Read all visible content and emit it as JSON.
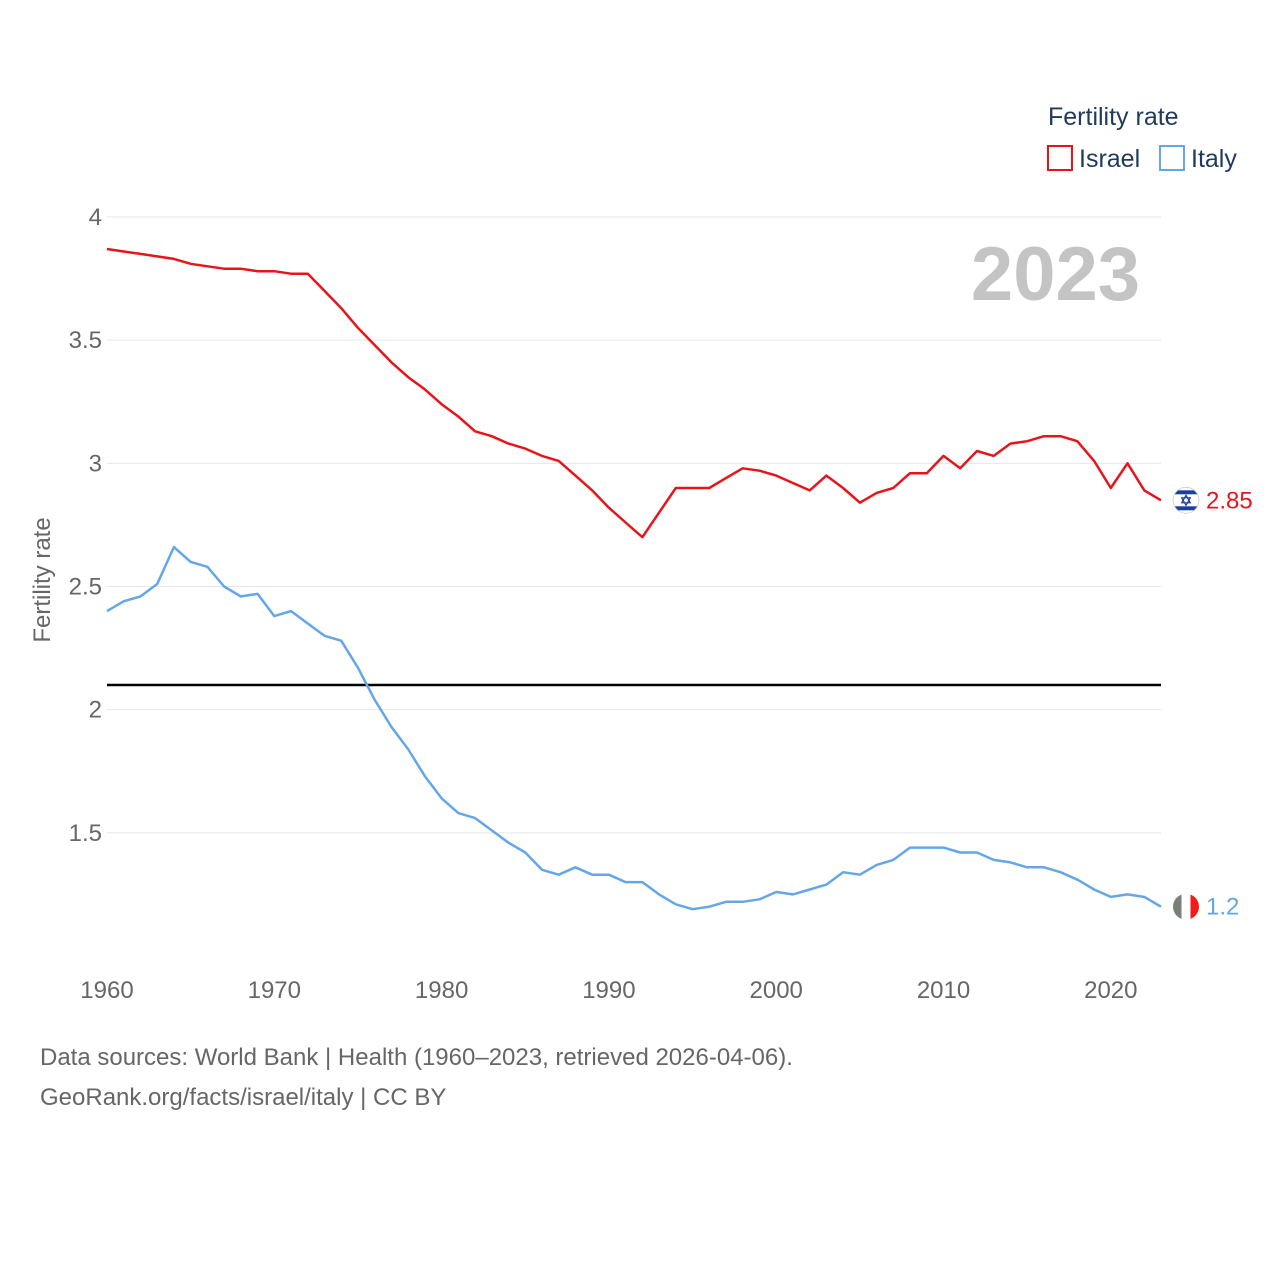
{
  "chart_data": {
    "type": "line",
    "legend_title": "Fertility rate",
    "year_label": "2023",
    "ylabel": "Fertility rate",
    "xlabel": "",
    "xlim": [
      1960,
      2023
    ],
    "ylim": [
      1.0,
      4.0
    ],
    "xticks": [
      1960,
      1970,
      1980,
      1990,
      2000,
      2010,
      2020
    ],
    "yticks": [
      1.5,
      2,
      2.5,
      3,
      3.5,
      4
    ],
    "ytick_labels": [
      "1.5",
      "2",
      "2.5",
      "3",
      "3.5",
      "4"
    ],
    "reference_line": {
      "y": 2.1,
      "color": "#000000"
    },
    "x": [
      1960,
      1961,
      1962,
      1963,
      1964,
      1965,
      1966,
      1967,
      1968,
      1969,
      1970,
      1971,
      1972,
      1973,
      1974,
      1975,
      1976,
      1977,
      1978,
      1979,
      1980,
      1981,
      1982,
      1983,
      1984,
      1985,
      1986,
      1987,
      1988,
      1989,
      1990,
      1991,
      1992,
      1993,
      1994,
      1995,
      1996,
      1997,
      1998,
      1999,
      2000,
      2001,
      2002,
      2003,
      2004,
      2005,
      2006,
      2007,
      2008,
      2009,
      2010,
      2011,
      2012,
      2013,
      2014,
      2015,
      2016,
      2017,
      2018,
      2019,
      2020,
      2021,
      2022,
      2023
    ],
    "series": [
      {
        "name": "Israel",
        "color": "#e8141c",
        "end_label": "2.85",
        "flag": "israel-flag",
        "values": [
          3.87,
          3.86,
          3.85,
          3.84,
          3.83,
          3.81,
          3.8,
          3.79,
          3.79,
          3.78,
          3.78,
          3.77,
          3.77,
          3.7,
          3.63,
          3.55,
          3.48,
          3.41,
          3.35,
          3.3,
          3.24,
          3.19,
          3.13,
          3.11,
          3.08,
          3.06,
          3.03,
          3.01,
          2.95,
          2.89,
          2.82,
          2.76,
          2.7,
          2.8,
          2.9,
          2.9,
          2.9,
          2.94,
          2.98,
          2.97,
          2.95,
          2.92,
          2.89,
          2.95,
          2.9,
          2.84,
          2.88,
          2.9,
          2.96,
          2.96,
          3.03,
          2.98,
          3.05,
          3.03,
          3.08,
          3.09,
          3.11,
          3.11,
          3.09,
          3.01,
          2.9,
          3.0,
          2.89,
          2.85
        ]
      },
      {
        "name": "Italy",
        "color": "#64a6e8",
        "end_label": "1.2",
        "flag": "italy-flag",
        "values": [
          2.4,
          2.44,
          2.46,
          2.51,
          2.66,
          2.6,
          2.58,
          2.5,
          2.46,
          2.47,
          2.38,
          2.4,
          2.35,
          2.3,
          2.28,
          2.17,
          2.04,
          1.93,
          1.84,
          1.73,
          1.64,
          1.58,
          1.56,
          1.51,
          1.46,
          1.42,
          1.35,
          1.33,
          1.36,
          1.33,
          1.33,
          1.3,
          1.3,
          1.25,
          1.21,
          1.19,
          1.2,
          1.22,
          1.22,
          1.23,
          1.26,
          1.25,
          1.27,
          1.29,
          1.34,
          1.33,
          1.37,
          1.39,
          1.44,
          1.44,
          1.44,
          1.42,
          1.42,
          1.39,
          1.38,
          1.36,
          1.36,
          1.34,
          1.31,
          1.27,
          1.24,
          1.25,
          1.24,
          1.2
        ]
      }
    ]
  },
  "footer": {
    "source": "Data sources: World Bank | Health (1960–2023, retrieved 2026-04-06).",
    "credit": "GeoRank.org/facts/israel/italy | CC BY"
  }
}
